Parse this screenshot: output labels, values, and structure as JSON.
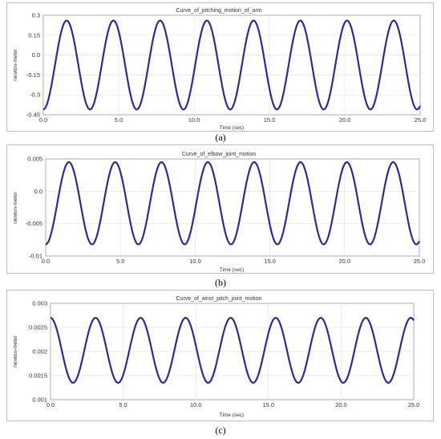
{
  "chart_data": [
    {
      "type": "line",
      "title": "Curve_of_pitching_motion_of_arm",
      "xlabel": "Time (sec)",
      "ylabel": "newton-meter",
      "xlim": [
        0,
        25
      ],
      "ylim": [
        -0.45,
        0.3
      ],
      "xticks": [
        "0.0",
        "5.0",
        "10.0",
        "15.0",
        "20.0",
        "25.0"
      ],
      "yticks": [
        "0.3",
        "0.15",
        "0.0",
        "-0.15",
        "-0.3",
        "-0.45"
      ],
      "grid": true,
      "series": [
        {
          "color": "#2b2ba0",
          "period": 3.1,
          "max": 0.26,
          "min": -0.41,
          "x": [
            0,
            25
          ],
          "x_at_min": [
            0.0,
            3.1,
            6.2,
            9.3,
            12.4,
            15.5,
            18.6,
            21.7,
            24.8
          ],
          "x_at_max": [
            1.55,
            4.65,
            7.75,
            10.85,
            13.95,
            17.05,
            20.15,
            23.25
          ]
        }
      ],
      "caption": "(a)"
    },
    {
      "type": "line",
      "title": "Curve_of_elbow_joint_motion",
      "xlabel": "Time (sec)",
      "ylabel": "newton-meter",
      "xlim": [
        0,
        25
      ],
      "ylim": [
        -0.01,
        0.005
      ],
      "xticks": [
        "0.0",
        "5.0",
        "10.0",
        "15.0",
        "20.0",
        "25.0"
      ],
      "yticks": [
        "0.005",
        "0.0",
        "-0.005",
        "-0.01"
      ],
      "grid": true,
      "series": [
        {
          "color": "#2b2ba0",
          "period": 3.1,
          "max": 0.0045,
          "min": -0.0082,
          "x": [
            0,
            25
          ],
          "x_at_min": [
            0.0,
            3.1,
            6.2,
            9.3,
            12.4,
            15.5,
            18.6,
            21.7,
            24.8
          ],
          "x_at_max": [
            1.55,
            4.65,
            7.75,
            10.85,
            13.95,
            17.05,
            20.15,
            23.25
          ]
        }
      ],
      "caption": "(b)"
    },
    {
      "type": "line",
      "title": "Curve_of_wrist_pitch_joint_motion",
      "xlabel": "Time (sec)",
      "ylabel": "newton-meter",
      "xlim": [
        0,
        25
      ],
      "ylim": [
        0.001,
        0.003
      ],
      "xticks": [
        "0.0",
        "5.0",
        "10.0",
        "15.0",
        "20.0",
        "25.0"
      ],
      "yticks": [
        "0.003",
        "0.0025",
        "0.002",
        "0.0015",
        "0.001"
      ],
      "grid": true,
      "series": [
        {
          "color": "#2b2ba0",
          "period": 3.1,
          "max": 0.0027,
          "min": 0.00135,
          "x": [
            0,
            25
          ],
          "x_at_max": [
            0.0,
            3.1,
            6.2,
            9.3,
            12.4,
            15.5,
            18.6,
            21.7,
            24.8
          ],
          "x_at_min": [
            1.55,
            4.65,
            7.75,
            10.85,
            13.95,
            17.05,
            20.15,
            23.25
          ]
        }
      ],
      "caption": "(c)"
    }
  ]
}
